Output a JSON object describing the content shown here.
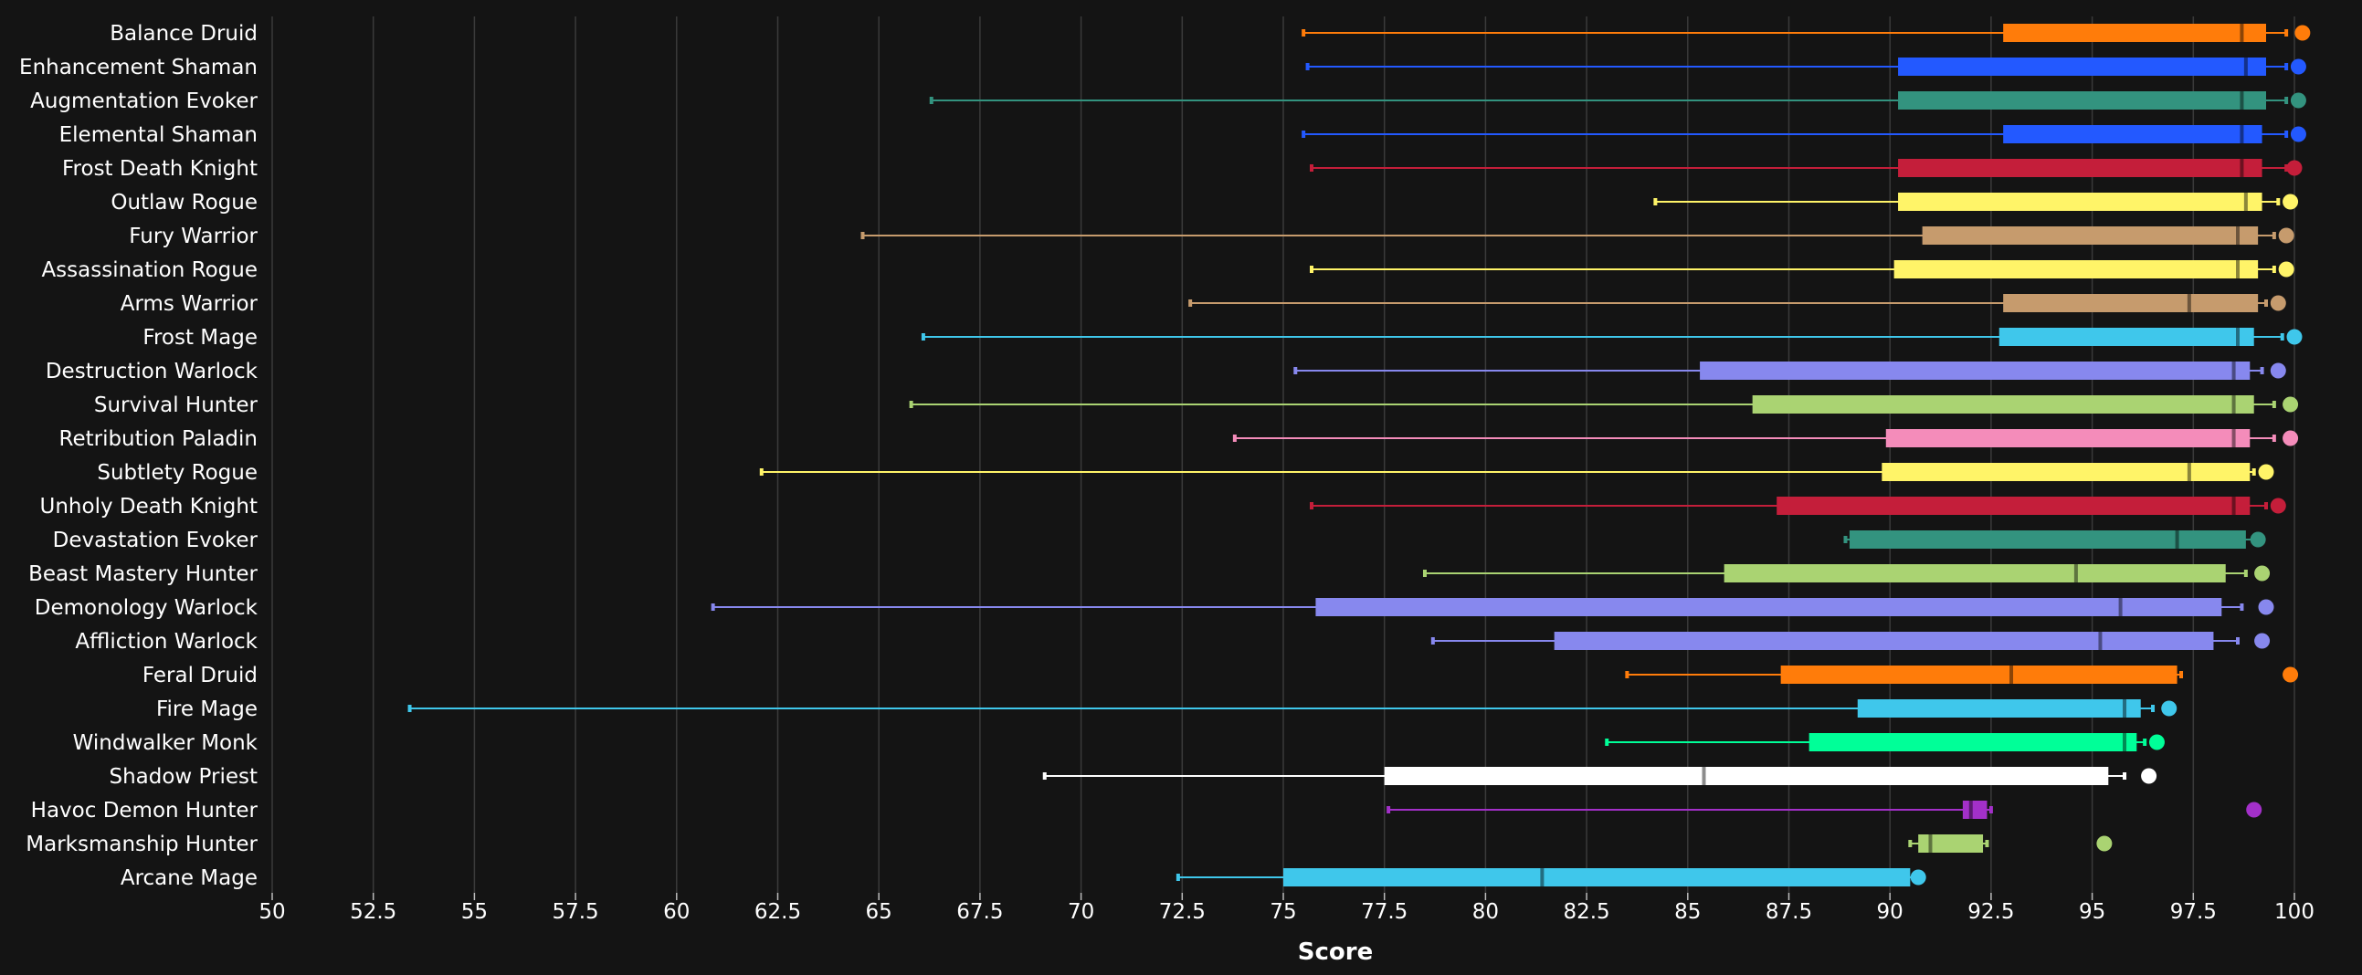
{
  "chart_data": {
    "type": "boxplot",
    "title": "",
    "xlabel": "Score",
    "ylabel": "",
    "xlim": [
      50,
      100
    ],
    "xticks": [
      "50",
      "52.5",
      "55",
      "57.5",
      "60",
      "62.5",
      "65",
      "67.5",
      "70",
      "72.5",
      "75",
      "77.5",
      "80",
      "82.5",
      "85",
      "87.5",
      "90",
      "92.5",
      "95",
      "97.5",
      "100"
    ],
    "grid": "vertical",
    "series": [
      {
        "name": "Balance Druid",
        "color": "#FF7C0A",
        "min": 75.5,
        "q1": 92.8,
        "median": 98.7,
        "q3": 99.3,
        "max": 99.8,
        "outlier": 100.2
      },
      {
        "name": "Enhancement Shaman",
        "color": "#2359FF",
        "min": 75.6,
        "q1": 90.2,
        "median": 98.8,
        "q3": 99.3,
        "max": 99.8,
        "outlier": 100.1
      },
      {
        "name": "Augmentation Evoker",
        "color": "#33937F",
        "min": 66.3,
        "q1": 90.2,
        "median": 98.7,
        "q3": 99.3,
        "max": 99.8,
        "outlier": 100.1
      },
      {
        "name": "Elemental Shaman",
        "color": "#2359FF",
        "min": 75.5,
        "q1": 92.8,
        "median": 98.7,
        "q3": 99.2,
        "max": 99.8,
        "outlier": 100.1
      },
      {
        "name": "Frost Death Knight",
        "color": "#C41E3A",
        "min": 75.7,
        "q1": 90.2,
        "median": 98.7,
        "q3": 99.2,
        "max": 99.8,
        "outlier": 100.0
      },
      {
        "name": "Outlaw Rogue",
        "color": "#FFF468",
        "min": 84.2,
        "q1": 90.2,
        "median": 98.8,
        "q3": 99.2,
        "max": 99.6,
        "outlier": 99.9
      },
      {
        "name": "Fury Warrior",
        "color": "#C69B6D",
        "min": 64.6,
        "q1": 90.8,
        "median": 98.6,
        "q3": 99.1,
        "max": 99.5,
        "outlier": 99.8
      },
      {
        "name": "Assassination Rogue",
        "color": "#FFF468",
        "min": 75.7,
        "q1": 90.1,
        "median": 98.6,
        "q3": 99.1,
        "max": 99.5,
        "outlier": 99.8
      },
      {
        "name": "Arms Warrior",
        "color": "#C69B6D",
        "min": 72.7,
        "q1": 92.8,
        "median": 97.4,
        "q3": 99.1,
        "max": 99.3,
        "outlier": 99.6
      },
      {
        "name": "Frost Mage",
        "color": "#3FC7EB",
        "min": 66.1,
        "q1": 92.7,
        "median": 98.6,
        "q3": 99.0,
        "max": 99.7,
        "outlier": 100.0
      },
      {
        "name": "Destruction Warlock",
        "color": "#8788EE",
        "min": 75.3,
        "q1": 85.3,
        "median": 98.5,
        "q3": 98.9,
        "max": 99.2,
        "outlier": 99.6
      },
      {
        "name": "Survival Hunter",
        "color": "#AAD372",
        "min": 65.8,
        "q1": 86.6,
        "median": 98.5,
        "q3": 99.0,
        "max": 99.5,
        "outlier": 99.9
      },
      {
        "name": "Retribution Paladin",
        "color": "#F48CBA",
        "min": 73.8,
        "q1": 89.9,
        "median": 98.5,
        "q3": 98.9,
        "max": 99.5,
        "outlier": 99.9
      },
      {
        "name": "Subtlety Rogue",
        "color": "#FFF468",
        "min": 62.1,
        "q1": 89.8,
        "median": 97.4,
        "q3": 98.9,
        "max": 99.0,
        "outlier": 99.3
      },
      {
        "name": "Unholy Death Knight",
        "color": "#C41E3A",
        "min": 75.7,
        "q1": 87.2,
        "median": 98.5,
        "q3": 98.9,
        "max": 99.3,
        "outlier": 99.6
      },
      {
        "name": "Devastation Evoker",
        "color": "#33937F",
        "min": 88.9,
        "q1": 89.0,
        "median": 97.1,
        "q3": 98.8,
        "max": 99.0,
        "outlier": 99.1
      },
      {
        "name": "Beast Mastery Hunter",
        "color": "#AAD372",
        "min": 78.5,
        "q1": 85.9,
        "median": 94.6,
        "q3": 98.3,
        "max": 98.8,
        "outlier": 99.2
      },
      {
        "name": "Demonology Warlock",
        "color": "#8788EE",
        "min": 60.9,
        "q1": 75.8,
        "median": 95.7,
        "q3": 98.2,
        "max": 98.7,
        "outlier": 99.3
      },
      {
        "name": "Affliction Warlock",
        "color": "#8788EE",
        "min": 78.7,
        "q1": 81.7,
        "median": 95.2,
        "q3": 98.0,
        "max": 98.6,
        "outlier": 99.2
      },
      {
        "name": "Feral Druid",
        "color": "#FF7C0A",
        "min": 83.5,
        "q1": 87.3,
        "median": 93.0,
        "q3": 97.1,
        "max": 97.2,
        "outlier": 99.9
      },
      {
        "name": "Fire Mage",
        "color": "#3FC7EB",
        "min": 53.4,
        "q1": 89.2,
        "median": 95.8,
        "q3": 96.2,
        "max": 96.5,
        "outlier": 96.9
      },
      {
        "name": "Windwalker Monk",
        "color": "#00FF98",
        "min": 83.0,
        "q1": 88.0,
        "median": 95.8,
        "q3": 96.1,
        "max": 96.3,
        "outlier": 96.6
      },
      {
        "name": "Shadow Priest",
        "color": "#FFFFFF",
        "min": 69.1,
        "q1": 77.5,
        "median": 85.4,
        "q3": 95.4,
        "max": 95.8,
        "outlier": 96.4
      },
      {
        "name": "Havoc Demon Hunter",
        "color": "#A330C9",
        "min": 77.6,
        "q1": 91.8,
        "median": 92.0,
        "q3": 92.4,
        "max": 92.5,
        "outlier": 99.0
      },
      {
        "name": "Marksmanship Hunter",
        "color": "#AAD372",
        "min": 90.5,
        "q1": 90.7,
        "median": 91.0,
        "q3": 92.3,
        "max": 92.4,
        "outlier": 95.3
      },
      {
        "name": "Arcane Mage",
        "color": "#3FC7EB",
        "min": 72.4,
        "q1": 75.0,
        "median": 81.4,
        "q3": 90.5,
        "max": 90.6,
        "outlier": 90.7
      }
    ]
  },
  "colors": {
    "background": "#141414",
    "gridline": "#3a3a3a",
    "text": "#ffffff"
  }
}
